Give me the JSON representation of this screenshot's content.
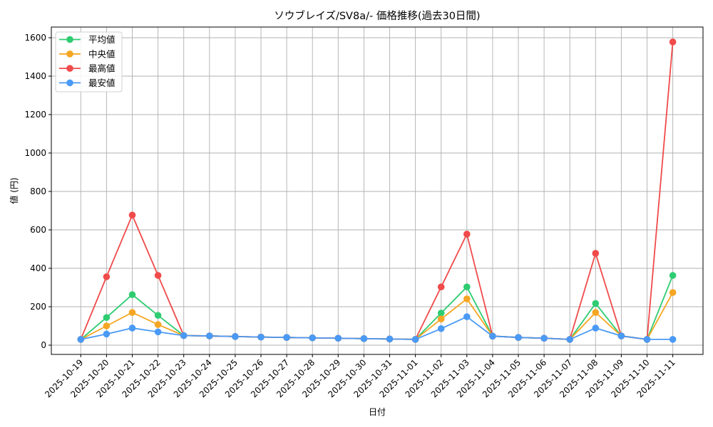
{
  "chart_data": {
    "type": "line",
    "title": "ソウブレイズ/SV8a/- 価格推移(過去30日間)",
    "xlabel": "日付",
    "ylabel": "値 (円)",
    "ylim": [
      -50,
      1650
    ],
    "yticks": [
      0,
      200,
      400,
      600,
      800,
      1000,
      1200,
      1400,
      1600
    ],
    "grid": true,
    "legend_position": "upper left",
    "categories": [
      "2025-10-19",
      "2025-10-20",
      "2025-10-21",
      "2025-10-22",
      "2025-10-23",
      "2025-10-24",
      "2025-10-25",
      "2025-10-26",
      "2025-10-27",
      "2025-10-28",
      "2025-10-29",
      "2025-10-30",
      "2025-10-31",
      "2025-11-01",
      "2025-11-02",
      "2025-11-03",
      "2025-11-04",
      "2025-11-05",
      "2025-11-06",
      "2025-11-07",
      "2025-11-08",
      "2025-11-09",
      "2025-11-10",
      "2025-11-11"
    ],
    "series": [
      {
        "name": "平均値",
        "color": "#2ecc71",
        "values": [
          30,
          144,
          263,
          155,
          50,
          48,
          45,
          42,
          40,
          38,
          36,
          34,
          32,
          30,
          167,
          303,
          47,
          40,
          36,
          30,
          217,
          48,
          30,
          363
        ]
      },
      {
        "name": "中央値",
        "color": "#f5a623",
        "values": [
          30,
          100,
          170,
          107,
          50,
          48,
          45,
          42,
          40,
          38,
          36,
          34,
          32,
          30,
          136,
          241,
          47,
          40,
          36,
          30,
          170,
          48,
          30,
          274
        ]
      },
      {
        "name": "最高値",
        "color": "#f04a4a",
        "values": [
          30,
          356,
          677,
          363,
          50,
          48,
          45,
          42,
          40,
          38,
          36,
          34,
          32,
          30,
          303,
          578,
          47,
          40,
          36,
          30,
          478,
          48,
          30,
          1578
        ]
      },
      {
        "name": "最安値",
        "color": "#4a9af5",
        "values": [
          30,
          58,
          89,
          69,
          50,
          48,
          45,
          42,
          40,
          38,
          36,
          34,
          32,
          30,
          86,
          148,
          47,
          40,
          36,
          30,
          89,
          48,
          30,
          30
        ]
      }
    ]
  }
}
